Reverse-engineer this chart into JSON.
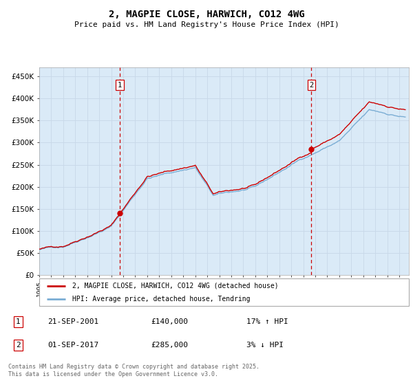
{
  "title": "2, MAGPIE CLOSE, HARWICH, CO12 4WG",
  "subtitle": "Price paid vs. HM Land Registry's House Price Index (HPI)",
  "ylim": [
    0,
    470000
  ],
  "yticks": [
    0,
    50000,
    100000,
    150000,
    200000,
    250000,
    300000,
    350000,
    400000,
    450000
  ],
  "ytick_labels": [
    "£0",
    "£50K",
    "£100K",
    "£150K",
    "£200K",
    "£250K",
    "£300K",
    "£350K",
    "£400K",
    "£450K"
  ],
  "sale1_date": 2001.72,
  "sale1_price": 140000,
  "sale2_date": 2017.67,
  "sale2_price": 285000,
  "line_color_property": "#cc0000",
  "line_color_hpi": "#7aadd4",
  "dot_color": "#cc0000",
  "dashed_line_color": "#cc0000",
  "shade_color": "#daeaf7",
  "grid_color": "#c8d8e8",
  "legend_entry1": "2, MAGPIE CLOSE, HARWICH, CO12 4WG (detached house)",
  "legend_entry2": "HPI: Average price, detached house, Tendring",
  "annotation1_date": "21-SEP-2001",
  "annotation1_price": "£140,000",
  "annotation1_hpi": "17% ↑ HPI",
  "annotation2_date": "01-SEP-2017",
  "annotation2_price": "£285,000",
  "annotation2_hpi": "3% ↓ HPI",
  "footnote": "Contains HM Land Registry data © Crown copyright and database right 2025.\nThis data is licensed under the Open Government Licence v3.0.",
  "xmin": 1995.0,
  "xmax": 2025.8,
  "xticks": [
    1995,
    1996,
    1997,
    1998,
    1999,
    2000,
    2001,
    2002,
    2003,
    2004,
    2005,
    2006,
    2007,
    2008,
    2009,
    2010,
    2011,
    2012,
    2013,
    2014,
    2015,
    2016,
    2017,
    2018,
    2019,
    2020,
    2021,
    2022,
    2023,
    2024,
    2025
  ]
}
